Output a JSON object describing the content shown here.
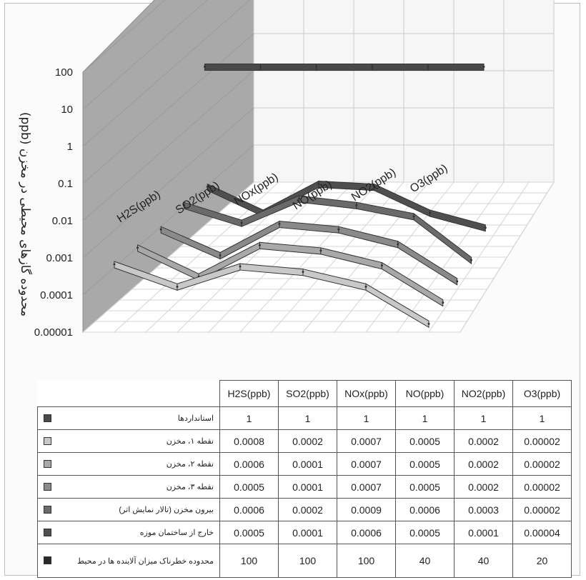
{
  "chart_data": {
    "type": "line",
    "subtype": "3d-line",
    "ylabel": "محدوده گازهای محیطی در مخزن (ppb)",
    "yscale": "log",
    "ylim": [
      1e-05,
      100
    ],
    "yticks": [
      "100",
      "10",
      "1",
      "0.1",
      "0.01",
      "0.001",
      "0.0001",
      "0.00001"
    ],
    "categories": [
      "H2S(ppb)",
      "SO2(ppb)",
      "NOx(ppb)",
      "NO(ppb)",
      "NO2(ppb)",
      "O3(ppb)"
    ],
    "axis_categories": [
      "H2S(ppb)",
      "SO2(ppb)",
      "NOx(ppb)",
      "NO(ppb)",
      "NO2(ppb)",
      "O3(ppb)"
    ],
    "grid": true,
    "series": [
      {
        "name": "استانداردها",
        "color": "#4a4a4a",
        "values": [
          1,
          1,
          1,
          1,
          1,
          1
        ],
        "display": [
          "1",
          "1",
          "1",
          "1",
          "1",
          "1"
        ]
      },
      {
        "name": "نقطه ۱، مخزن",
        "color": "#c8c8c8",
        "values": [
          0.0008,
          0.0002,
          0.0007,
          0.0005,
          0.0002,
          2e-05
        ],
        "display": [
          "0.0008",
          "0.0002",
          "0.0007",
          "0.0005",
          "0.0002",
          "0.00002"
        ]
      },
      {
        "name": "نقطه ۲، مخزن",
        "color": "#a8a8a8",
        "values": [
          0.0006,
          0.0001,
          0.0007,
          0.0005,
          0.0002,
          2e-05
        ],
        "display": [
          "0.0006",
          "0.0001",
          "0.0007",
          "0.0005",
          "0.0002",
          "0.00002"
        ]
      },
      {
        "name": "نقطه ۳، مخزن",
        "color": "#8a8a8a",
        "values": [
          0.0005,
          0.0001,
          0.0007,
          0.0005,
          0.0002,
          2e-05
        ],
        "display": [
          "0.0005",
          "0.0001",
          "0.0007",
          "0.0005",
          "0.0002",
          "0.00002"
        ]
      },
      {
        "name": "بیرون مخزن (تالار نمایش اثر)",
        "color": "#6a6a6a",
        "values": [
          0.0006,
          0.0002,
          0.0009,
          0.0006,
          0.0003,
          2e-05
        ],
        "display": [
          "0.0006",
          "0.0002",
          "0.0009",
          "0.0006",
          "0.0003",
          "0.00002"
        ]
      },
      {
        "name": "خارج از ساختمان موزه",
        "color": "#4f4f4f",
        "values": [
          0.0005,
          0.0001,
          0.0006,
          0.0005,
          0.0001,
          4e-05
        ],
        "display": [
          "0.0005",
          "0.0001",
          "0.0006",
          "0.0005",
          "0.0001",
          "0.00004"
        ]
      },
      {
        "name": "محدوده خطرناک میزان آلاینده ها در محیط",
        "color": "#2a2a2a",
        "values": [
          100,
          100,
          100,
          40,
          40,
          20
        ],
        "display": [
          "100",
          "100",
          "100",
          "40",
          "40",
          "20"
        ]
      }
    ]
  }
}
